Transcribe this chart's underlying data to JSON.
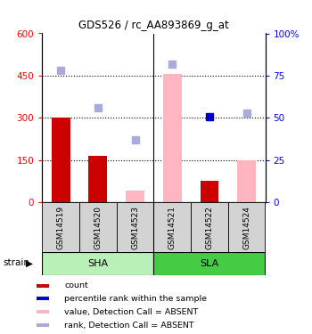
{
  "title": "GDS526 / rc_AA893869_g_at",
  "samples": [
    "GSM14519",
    "GSM14520",
    "GSM14523",
    "GSM14521",
    "GSM14522",
    "GSM14524"
  ],
  "ylim_left": [
    0,
    600
  ],
  "ylim_right": [
    0,
    100
  ],
  "yticks_left": [
    0,
    150,
    300,
    450,
    600
  ],
  "yticks_right": [
    0,
    25,
    50,
    75,
    100
  ],
  "ytick_labels_left": [
    "0",
    "150",
    "300",
    "450",
    "600"
  ],
  "ytick_labels_right": [
    "0",
    "25",
    "50",
    "75",
    "100%"
  ],
  "count_values": [
    300,
    163,
    0,
    0,
    75,
    0
  ],
  "count_present": [
    true,
    true,
    false,
    false,
    true,
    false
  ],
  "percentile_rank_left": [
    null,
    null,
    null,
    null,
    305,
    null
  ],
  "value_absent_left": [
    null,
    null,
    40,
    455,
    null,
    148
  ],
  "rank_absent_left": [
    470,
    335,
    220,
    490,
    null,
    315
  ],
  "count_color": "#CC0000",
  "percentile_color": "#0000CC",
  "value_absent_color": "#FFB6C1",
  "rank_absent_color": "#AAAADD",
  "bar_width": 0.5,
  "sha_bg": "#b8f0b8",
  "sla_bg": "#44cc44",
  "group_bg": "#d3d3d3"
}
